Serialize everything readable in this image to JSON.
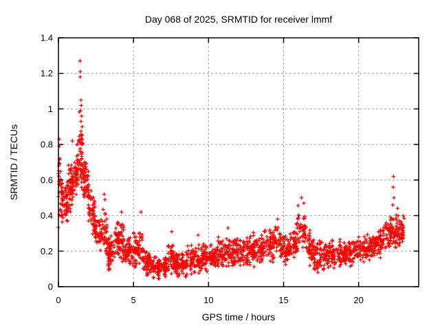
{
  "chart_data": {
    "type": "scatter",
    "title": "Day 068 of 2025, SRMTID for receiver lmmf",
    "xlabel": "GPS time / hours",
    "ylabel": "SRMTID / TECUs",
    "xlim": [
      0,
      24
    ],
    "ylim": [
      0,
      1.4
    ],
    "xticks": [
      0,
      5,
      10,
      15,
      20
    ],
    "xtick_labels": [
      "0",
      "5",
      "10",
      "15",
      "20"
    ],
    "yticks": [
      0,
      0.2,
      0.4,
      0.6,
      0.8,
      1,
      1.2,
      1.4
    ],
    "ytick_labels": [
      "0",
      "0.2",
      "0.4",
      "0.6",
      "0.8",
      "1",
      "1.2",
      "1.4"
    ],
    "grid": true,
    "legend": "none",
    "marker": "plus",
    "marker_color": "#ff0000",
    "grid_color": "#9e9e9e",
    "border_color": "#000000",
    "series_name": "SRMTID",
    "x_data_range": [
      0,
      23.05
    ],
    "seed": 68,
    "envelope_segments": [
      [
        0.0,
        0.15,
        13,
        0.33,
        0.83,
        0.35,
        0.75
      ],
      [
        0.15,
        0.6,
        30,
        0.35,
        0.65,
        0.33,
        0.62
      ],
      [
        0.6,
        1.0,
        28,
        0.4,
        0.72,
        0.42,
        0.7
      ],
      [
        1.0,
        1.35,
        23,
        0.45,
        0.8,
        0.5,
        0.85
      ],
      [
        1.35,
        1.6,
        20,
        0.55,
        1.02,
        0.55,
        0.95
      ],
      [
        1.6,
        2.0,
        28,
        0.5,
        0.78,
        0.45,
        0.7
      ],
      [
        2.0,
        2.45,
        28,
        0.3,
        0.62,
        0.25,
        0.5
      ],
      [
        2.45,
        2.95,
        28,
        0.2,
        0.42,
        0.18,
        0.38
      ],
      [
        2.95,
        3.25,
        18,
        0.18,
        0.5,
        0.15,
        0.38
      ],
      [
        3.25,
        3.75,
        28,
        0.07,
        0.3,
        0.08,
        0.3
      ],
      [
        3.75,
        4.1,
        20,
        0.12,
        0.42,
        0.12,
        0.38
      ],
      [
        4.1,
        4.35,
        15,
        0.13,
        0.43,
        0.12,
        0.35
      ],
      [
        4.35,
        5.0,
        33,
        0.1,
        0.3,
        0.1,
        0.28
      ],
      [
        5.0,
        5.6,
        30,
        0.1,
        0.33,
        0.12,
        0.36
      ],
      [
        5.6,
        6.3,
        35,
        0.05,
        0.24,
        0.04,
        0.2
      ],
      [
        6.3,
        7.3,
        48,
        0.04,
        0.18,
        0.04,
        0.18
      ],
      [
        7.3,
        7.7,
        20,
        0.06,
        0.3,
        0.06,
        0.24
      ],
      [
        7.7,
        8.6,
        43,
        0.05,
        0.2,
        0.05,
        0.22
      ],
      [
        8.6,
        9.0,
        20,
        0.06,
        0.26,
        0.06,
        0.24
      ],
      [
        9.0,
        9.8,
        38,
        0.06,
        0.22,
        0.07,
        0.28
      ],
      [
        9.8,
        10.6,
        38,
        0.07,
        0.24,
        0.08,
        0.26
      ],
      [
        10.6,
        11.4,
        38,
        0.08,
        0.28,
        0.1,
        0.31
      ],
      [
        11.4,
        12.2,
        38,
        0.1,
        0.3,
        0.1,
        0.28
      ],
      [
        12.2,
        13.0,
        38,
        0.1,
        0.3,
        0.1,
        0.31
      ],
      [
        13.0,
        13.8,
        38,
        0.1,
        0.3,
        0.12,
        0.33
      ],
      [
        13.8,
        14.8,
        45,
        0.12,
        0.34,
        0.13,
        0.37
      ],
      [
        14.8,
        15.6,
        38,
        0.12,
        0.3,
        0.12,
        0.3
      ],
      [
        15.6,
        15.95,
        18,
        0.12,
        0.32,
        0.15,
        0.4
      ],
      [
        15.95,
        16.5,
        25,
        0.2,
        0.47,
        0.18,
        0.42
      ],
      [
        16.5,
        17.0,
        25,
        0.12,
        0.35,
        0.1,
        0.3
      ],
      [
        17.0,
        18.0,
        45,
        0.08,
        0.26,
        0.08,
        0.26
      ],
      [
        18.0,
        19.0,
        45,
        0.09,
        0.28,
        0.1,
        0.28
      ],
      [
        19.0,
        20.0,
        45,
        0.1,
        0.28,
        0.12,
        0.28
      ],
      [
        20.0,
        20.8,
        38,
        0.12,
        0.3,
        0.13,
        0.3
      ],
      [
        20.8,
        21.6,
        38,
        0.14,
        0.32,
        0.16,
        0.35
      ],
      [
        21.6,
        22.3,
        35,
        0.17,
        0.38,
        0.2,
        0.42
      ],
      [
        22.3,
        23.05,
        38,
        0.18,
        0.42,
        0.22,
        0.4
      ]
    ],
    "outlier_points": [
      [
        0.05,
        0.83
      ],
      [
        0.06,
        0.79
      ],
      [
        0.1,
        0.72
      ],
      [
        0.93,
        0.82
      ],
      [
        1.44,
        1.27
      ],
      [
        1.46,
        1.21
      ],
      [
        1.45,
        1.18
      ],
      [
        1.5,
        1.05
      ],
      [
        1.52,
        1.02
      ],
      [
        1.48,
        0.99
      ],
      [
        1.55,
        0.96
      ],
      [
        1.5,
        0.93
      ],
      [
        1.58,
        0.9
      ],
      [
        3.05,
        0.52
      ],
      [
        3.1,
        0.49
      ],
      [
        4.2,
        0.42
      ],
      [
        5.5,
        0.42
      ],
      [
        7.55,
        0.31
      ],
      [
        9.3,
        0.29
      ],
      [
        11.3,
        0.33
      ],
      [
        14.6,
        0.38
      ],
      [
        16.2,
        0.5
      ],
      [
        16.35,
        0.47
      ],
      [
        22.32,
        0.62
      ],
      [
        22.3,
        0.56
      ],
      [
        22.35,
        0.5
      ],
      [
        22.28,
        0.46
      ],
      [
        22.6,
        0.44
      ]
    ]
  }
}
